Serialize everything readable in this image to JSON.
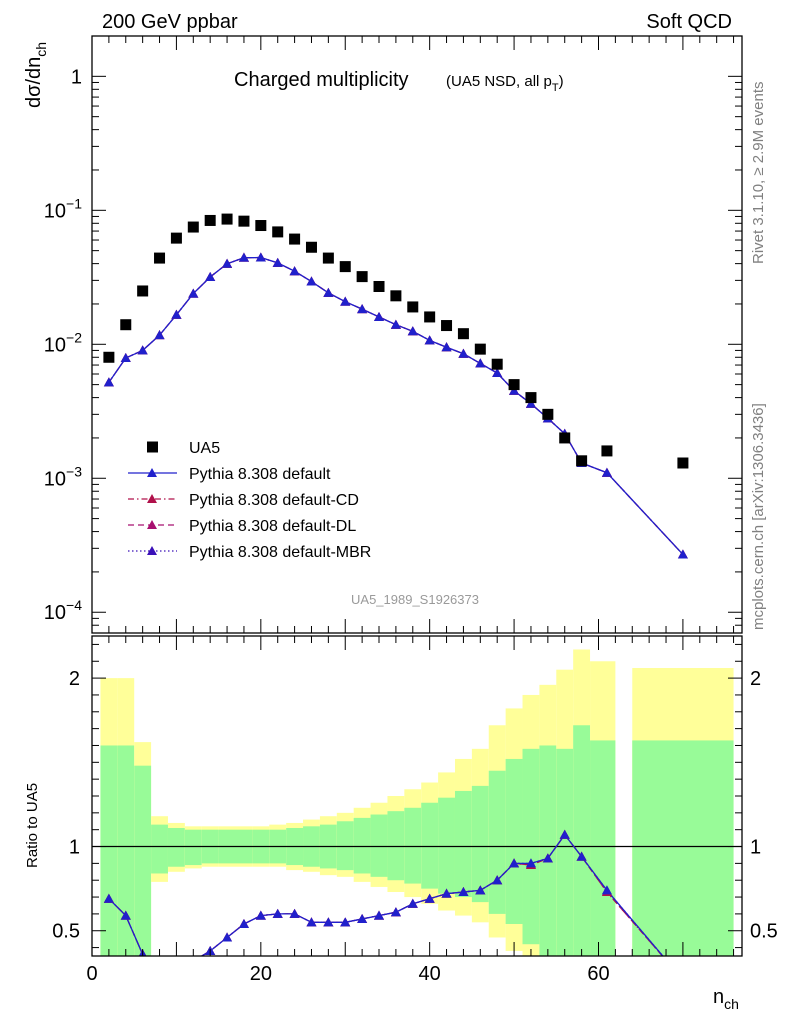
{
  "header": {
    "left": "200 GeV ppbar",
    "right": "Soft QCD"
  },
  "side_text": {
    "top": "Rivet 3.1.10, ≥ 2.9M events",
    "bottom": "mcplots.cern.ch [arXiv:1306.3436]"
  },
  "watermark": "UA5_1989_S1926373",
  "colors": {
    "data": "#000000",
    "default": "#2020cc",
    "cd": "#b0104a",
    "dl": "#a81070",
    "mbr": "#3a10b8",
    "band_inner": "#98fb98",
    "band_outer": "#ffff99"
  },
  "chart_data": [
    {
      "type": "scatter",
      "title": "Charged multiplicity",
      "title_qual": "(UA5 NSD, all p",
      "title_qual_sub": "T",
      "title_qual_close": ")",
      "ylabel": "dσ/dn",
      "ylabel_sub": "ch",
      "yscale": "log",
      "xlim": [
        0,
        77
      ],
      "ylim": [
        7e-05,
        2
      ],
      "yticks": [
        {
          "v": 1,
          "base": "1",
          "exp": ""
        },
        {
          "v": 0.1,
          "base": "10",
          "exp": "−1"
        },
        {
          "v": 0.01,
          "base": "10",
          "exp": "−2"
        },
        {
          "v": 0.001,
          "base": "10",
          "exp": "−3"
        },
        {
          "v": 0.0001,
          "base": "10",
          "exp": "−4"
        }
      ],
      "legend_position": "lower-left",
      "series": [
        {
          "name": "UA5",
          "key": "data",
          "marker": "square",
          "x": [
            2,
            4,
            6,
            8,
            10,
            12,
            14,
            16,
            18,
            20,
            22,
            24,
            26,
            28,
            30,
            32,
            34,
            36,
            38,
            40,
            42,
            44,
            46,
            48,
            50,
            52,
            54,
            56,
            58,
            61,
            70
          ],
          "y": [
            0.008,
            0.014,
            0.025,
            0.044,
            0.062,
            0.075,
            0.084,
            0.086,
            0.083,
            0.077,
            0.069,
            0.061,
            0.053,
            0.044,
            0.038,
            0.032,
            0.027,
            0.023,
            0.019,
            0.016,
            0.0138,
            0.012,
            0.0092,
            0.0071,
            0.005,
            0.004,
            0.003,
            0.002,
            0.00135,
            0.0016,
            0.0013
          ]
        },
        {
          "name": "Pythia 8.308 default",
          "key": "default",
          "marker": "triangle",
          "line": "solid",
          "x": [
            2,
            4,
            6,
            8,
            10,
            12,
            14,
            16,
            18,
            20,
            22,
            24,
            26,
            28,
            30,
            32,
            34,
            36,
            38,
            40,
            42,
            44,
            46,
            48,
            50,
            52,
            54,
            56,
            58,
            61,
            70
          ],
          "y": [
            0.0052,
            0.0079,
            0.009,
            0.0117,
            0.0166,
            0.0239,
            0.0318,
            0.0399,
            0.0443,
            0.0444,
            0.0405,
            0.0351,
            0.0294,
            0.0242,
            0.0208,
            0.0183,
            0.016,
            0.014,
            0.0125,
            0.0107,
            0.0095,
            0.0085,
            0.0072,
            0.0061,
            0.0045,
            0.0036,
            0.0028,
            0.00215,
            0.0013,
            0.0011,
            0.00027
          ]
        },
        {
          "name": "Pythia 8.308 default-CD",
          "key": "cd",
          "marker": "triangle",
          "line": "dashdot",
          "x": [
            2,
            4,
            6,
            8,
            10,
            12,
            14,
            16,
            18,
            20,
            22,
            24,
            26,
            28,
            30,
            32,
            34,
            36,
            38,
            40,
            42,
            44,
            46,
            48,
            50,
            52,
            54,
            56,
            58,
            61,
            70
          ],
          "y": [
            0.0052,
            0.0079,
            0.009,
            0.0117,
            0.0166,
            0.0239,
            0.0318,
            0.0399,
            0.0443,
            0.0444,
            0.0405,
            0.0351,
            0.0294,
            0.0242,
            0.0208,
            0.0183,
            0.016,
            0.014,
            0.0125,
            0.0107,
            0.0095,
            0.0085,
            0.0072,
            0.0061,
            0.0045,
            0.0036,
            0.0028,
            0.00215,
            0.0013,
            0.0011,
            0.00027
          ]
        },
        {
          "name": "Pythia 8.308 default-DL",
          "key": "dl",
          "marker": "triangle",
          "line": "dashed",
          "x": [
            2,
            4,
            6,
            8,
            10,
            12,
            14,
            16,
            18,
            20,
            22,
            24,
            26,
            28,
            30,
            32,
            34,
            36,
            38,
            40,
            42,
            44,
            46,
            48,
            50,
            52,
            54,
            56,
            58,
            61,
            70
          ],
          "y": [
            0.0052,
            0.0079,
            0.009,
            0.0117,
            0.0166,
            0.0239,
            0.0318,
            0.0399,
            0.0443,
            0.0444,
            0.0405,
            0.0351,
            0.0294,
            0.0242,
            0.0208,
            0.0183,
            0.016,
            0.014,
            0.0125,
            0.0107,
            0.0095,
            0.0085,
            0.0072,
            0.0061,
            0.0045,
            0.0036,
            0.0028,
            0.00215,
            0.0013,
            0.0011,
            0.00027
          ]
        },
        {
          "name": "Pythia 8.308 default-MBR",
          "key": "mbr",
          "marker": "triangle",
          "line": "dotted",
          "x": [
            2,
            4,
            6,
            8,
            10,
            12,
            14,
            16,
            18,
            20,
            22,
            24,
            26,
            28,
            30,
            32,
            34,
            36,
            38,
            40,
            42,
            44,
            46,
            48,
            50,
            52,
            54,
            56,
            58,
            61,
            70
          ],
          "y": [
            0.0052,
            0.0079,
            0.009,
            0.0117,
            0.0166,
            0.0239,
            0.0318,
            0.0399,
            0.0443,
            0.0444,
            0.0405,
            0.0351,
            0.0294,
            0.0242,
            0.0208,
            0.0183,
            0.016,
            0.014,
            0.0125,
            0.0107,
            0.0095,
            0.0085,
            0.0072,
            0.0061,
            0.0045,
            0.0036,
            0.0028,
            0.00215,
            0.0013,
            0.0011,
            0.00027
          ]
        }
      ]
    },
    {
      "type": "line",
      "ylabel": "Ratio to UA5",
      "xlabel": "n",
      "xlabel_sub": "ch",
      "xlim": [
        0,
        77
      ],
      "ylim": [
        0.35,
        2.25
      ],
      "xticks": [
        0,
        20,
        40,
        60
      ],
      "yticks": [
        0.5,
        1,
        2
      ],
      "ytick_labels": [
        "0.5",
        "1",
        "2"
      ],
      "bands": {
        "edges": [
          1,
          3,
          5,
          7,
          9,
          11,
          13,
          15,
          17,
          19,
          21,
          23,
          25,
          27,
          29,
          31,
          33,
          35,
          37,
          39,
          41,
          43,
          45,
          47,
          49,
          51,
          53,
          55,
          57,
          59,
          62,
          64,
          76
        ],
        "inner_lo": [
          0.35,
          0.35,
          0.35,
          0.84,
          0.88,
          0.89,
          0.9,
          0.9,
          0.9,
          0.9,
          0.9,
          0.89,
          0.88,
          0.87,
          0.86,
          0.84,
          0.82,
          0.8,
          0.78,
          0.75,
          0.72,
          0.7,
          0.67,
          0.6,
          0.54,
          0.42,
          0.35,
          0.35,
          0.35,
          0.35,
          null,
          0.35
        ],
        "inner_hi": [
          1.6,
          1.6,
          1.48,
          1.13,
          1.11,
          1.1,
          1.1,
          1.1,
          1.1,
          1.1,
          1.1,
          1.11,
          1.12,
          1.13,
          1.15,
          1.17,
          1.19,
          1.21,
          1.23,
          1.26,
          1.29,
          1.33,
          1.36,
          1.45,
          1.52,
          1.58,
          1.6,
          1.58,
          1.72,
          1.63,
          null,
          1.63
        ],
        "outer_lo": [
          0.35,
          0.35,
          0.35,
          0.79,
          0.85,
          0.87,
          0.88,
          0.88,
          0.88,
          0.88,
          0.88,
          0.86,
          0.85,
          0.83,
          0.82,
          0.79,
          0.76,
          0.73,
          0.7,
          0.66,
          0.62,
          0.59,
          0.55,
          0.46,
          0.38,
          0.35,
          0.35,
          0.35,
          0.35,
          0.35,
          null,
          0.35
        ],
        "outer_hi": [
          2.0,
          2.0,
          1.62,
          1.18,
          1.14,
          1.12,
          1.12,
          1.12,
          1.12,
          1.12,
          1.13,
          1.14,
          1.16,
          1.18,
          1.2,
          1.23,
          1.26,
          1.3,
          1.34,
          1.38,
          1.44,
          1.52,
          1.58,
          1.72,
          1.82,
          1.9,
          1.96,
          2.05,
          2.17,
          2.1,
          null,
          2.06
        ]
      },
      "series": [
        {
          "name": "Pythia 8.308 default",
          "key": "default",
          "x": [
            2,
            4,
            6,
            8,
            10,
            12,
            14,
            16,
            18,
            20,
            22,
            24,
            26,
            28,
            30,
            32,
            34,
            36,
            38,
            40,
            42,
            44,
            46,
            48,
            50,
            52,
            54,
            56,
            58,
            61,
            70
          ],
          "y": [
            0.69,
            0.59,
            0.36,
            0.27,
            0.27,
            0.32,
            0.38,
            0.46,
            0.54,
            0.59,
            0.6,
            0.6,
            0.55,
            0.55,
            0.55,
            0.57,
            0.59,
            0.61,
            0.66,
            0.69,
            0.72,
            0.73,
            0.74,
            0.8,
            0.9,
            0.9,
            0.93,
            1.07,
            0.94,
            0.74,
            0.21
          ]
        },
        {
          "name": "Pythia 8.308 default-CD",
          "key": "cd",
          "x": [
            2,
            4,
            6,
            8,
            10,
            12,
            14,
            16,
            18,
            20,
            22,
            24,
            26,
            28,
            30,
            32,
            34,
            36,
            38,
            40,
            42,
            44,
            46,
            48,
            50,
            52,
            54,
            56,
            58,
            61,
            70
          ],
          "y": [
            0.69,
            0.59,
            0.36,
            0.27,
            0.27,
            0.32,
            0.38,
            0.46,
            0.54,
            0.59,
            0.6,
            0.6,
            0.55,
            0.55,
            0.55,
            0.57,
            0.59,
            0.61,
            0.66,
            0.69,
            0.72,
            0.73,
            0.74,
            0.8,
            0.9,
            0.89,
            0.93,
            1.07,
            0.94,
            0.73,
            0.21
          ]
        },
        {
          "name": "Pythia 8.308 default-DL",
          "key": "dl",
          "x": [
            2,
            4,
            6,
            8,
            10,
            12,
            14,
            16,
            18,
            20,
            22,
            24,
            26,
            28,
            30,
            32,
            34,
            36,
            38,
            40,
            42,
            44,
            46,
            48,
            50,
            52,
            54,
            56,
            58,
            61,
            70
          ],
          "y": [
            0.69,
            0.59,
            0.36,
            0.27,
            0.27,
            0.32,
            0.38,
            0.46,
            0.54,
            0.59,
            0.6,
            0.6,
            0.55,
            0.55,
            0.55,
            0.57,
            0.59,
            0.61,
            0.66,
            0.69,
            0.72,
            0.73,
            0.74,
            0.8,
            0.9,
            0.89,
            0.93,
            1.07,
            0.94,
            0.73,
            0.21
          ]
        },
        {
          "name": "Pythia 8.308 default-MBR",
          "key": "mbr",
          "x": [
            2,
            4,
            6,
            8,
            10,
            12,
            14,
            16,
            18,
            20,
            22,
            24,
            26,
            28,
            30,
            32,
            34,
            36,
            38,
            40,
            42,
            44,
            46,
            48,
            50,
            52,
            54,
            56,
            58,
            61,
            70
          ],
          "y": [
            0.69,
            0.59,
            0.36,
            0.27,
            0.27,
            0.32,
            0.38,
            0.46,
            0.54,
            0.59,
            0.6,
            0.6,
            0.55,
            0.55,
            0.55,
            0.57,
            0.59,
            0.61,
            0.66,
            0.69,
            0.72,
            0.73,
            0.74,
            0.8,
            0.9,
            0.9,
            0.93,
            1.07,
            0.94,
            0.74,
            0.21
          ]
        }
      ]
    }
  ]
}
